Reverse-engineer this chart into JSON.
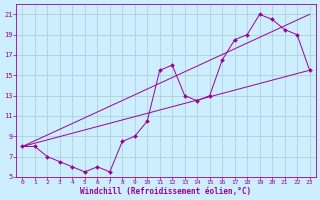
{
  "xlabel": "Windchill (Refroidissement éolien,°C)",
  "bg_color": "#cceeff",
  "line_color": "#990099",
  "grid_color": "#aacccc",
  "xlim": [
    -0.5,
    23.5
  ],
  "ylim": [
    5,
    22
  ],
  "xticks": [
    0,
    1,
    2,
    3,
    4,
    5,
    6,
    7,
    8,
    9,
    10,
    11,
    12,
    13,
    14,
    15,
    16,
    17,
    18,
    19,
    20,
    21,
    22,
    23
  ],
  "yticks": [
    5,
    7,
    9,
    11,
    13,
    15,
    17,
    19,
    21
  ],
  "line1_x": [
    0,
    1,
    2,
    3,
    4,
    5,
    6,
    7,
    8,
    9,
    10,
    11,
    12,
    13,
    14,
    15,
    16,
    17,
    18,
    19,
    20,
    21,
    22,
    23
  ],
  "line1_y": [
    8.0,
    8.0,
    7.0,
    6.5,
    6.0,
    5.5,
    6.0,
    5.5,
    8.5,
    9.0,
    10.5,
    15.5,
    16.0,
    13.0,
    12.5,
    13.0,
    16.5,
    18.5,
    19.0,
    21.0,
    20.5,
    19.5,
    19.0,
    15.5
  ],
  "line2_x": [
    0,
    23
  ],
  "line2_y": [
    8.0,
    15.5
  ],
  "line3_x": [
    0,
    23
  ],
  "line3_y": [
    8.0,
    21.0
  ]
}
